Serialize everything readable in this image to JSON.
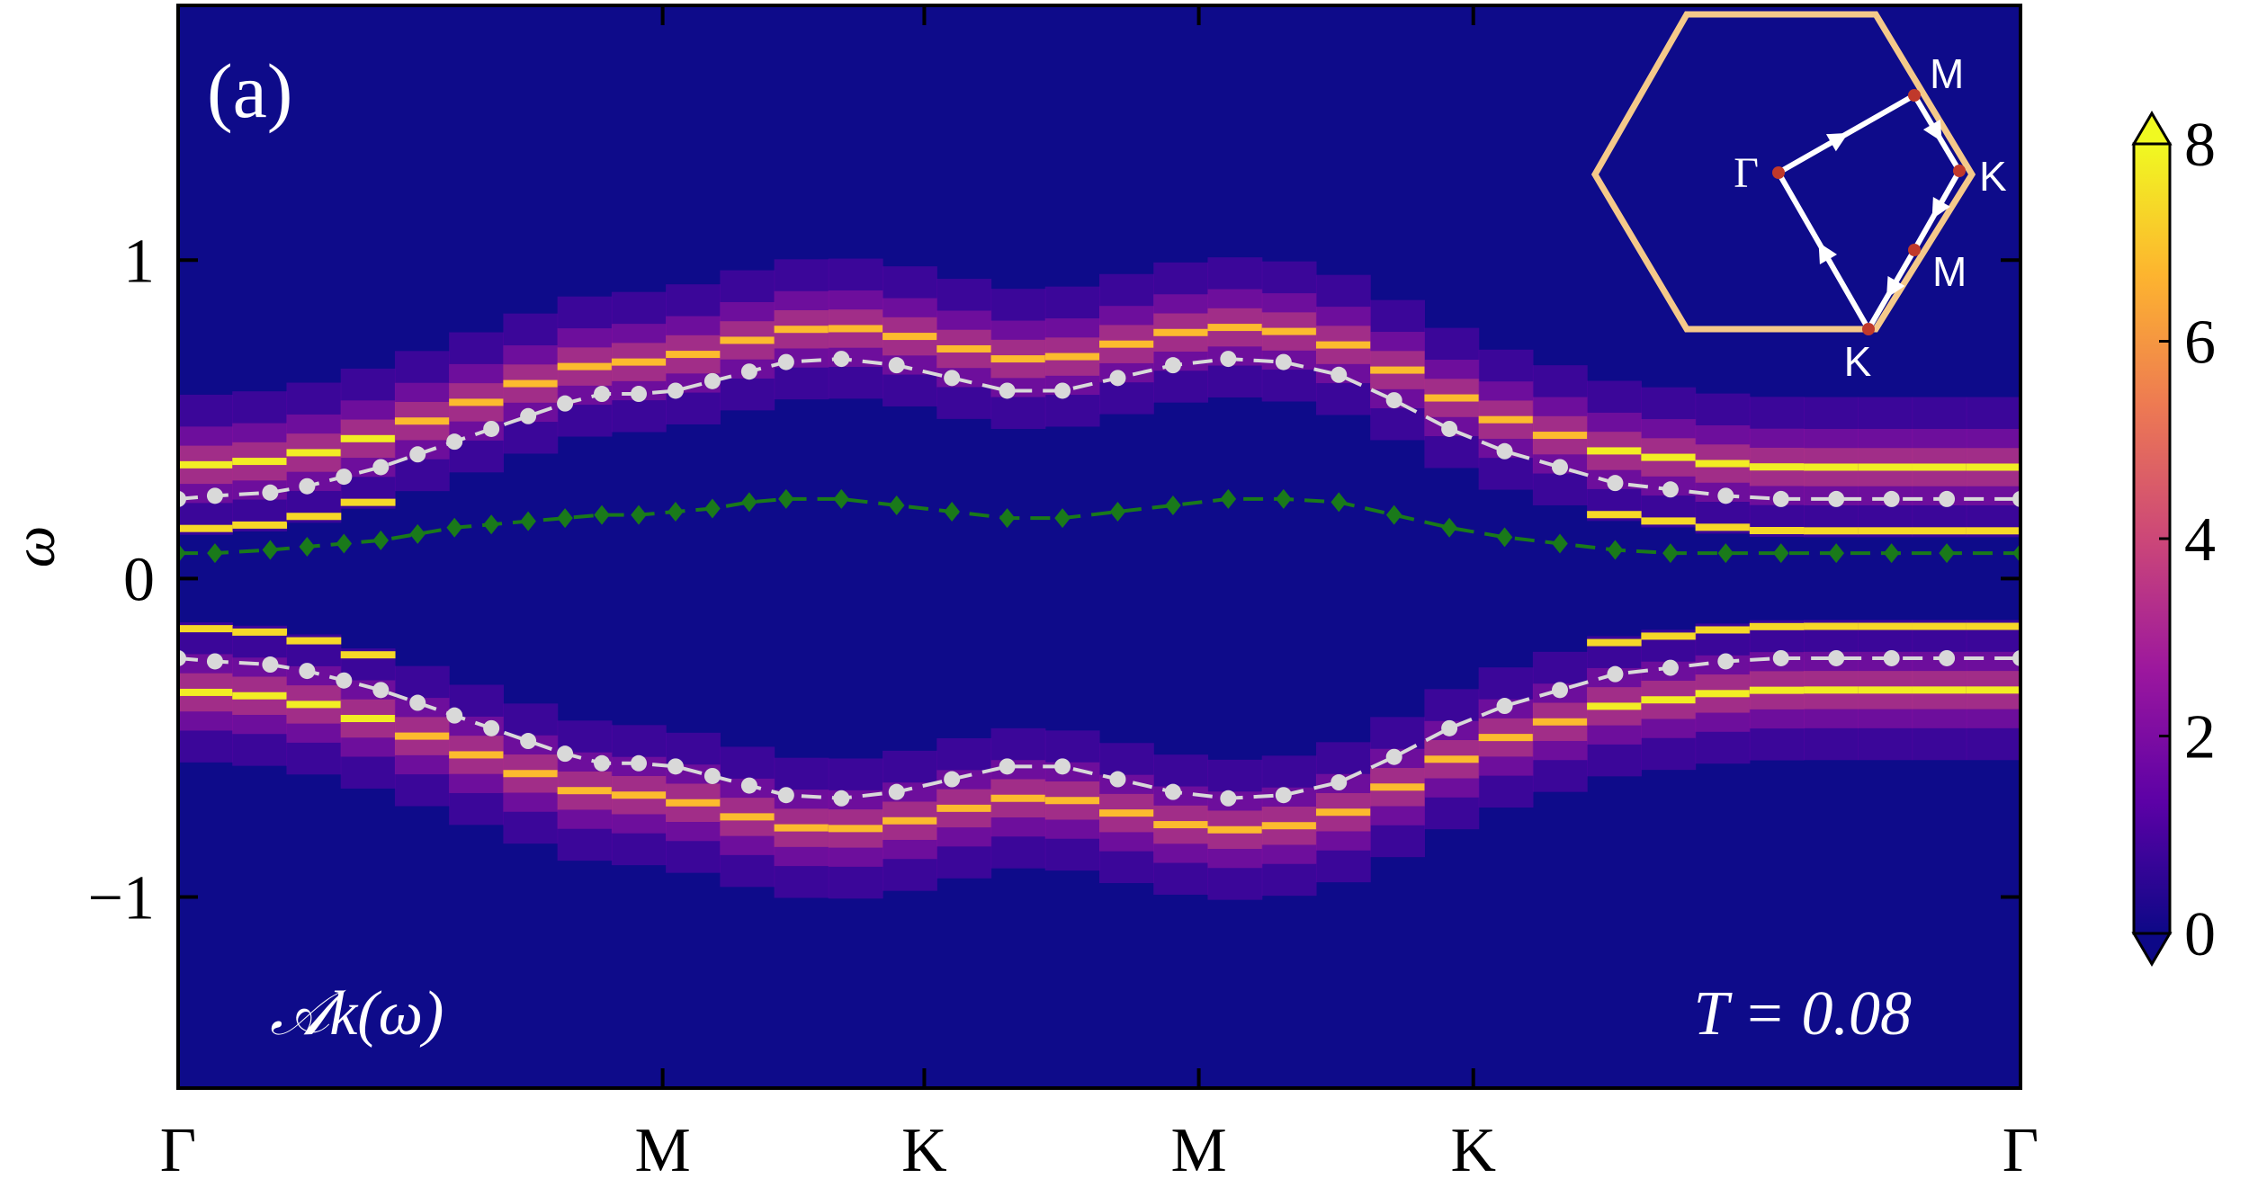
{
  "chart_data": {
    "type": "heatmap",
    "panel_label": "(a)",
    "ylabel": "ω",
    "spectral_label": "𝒜k(ω)",
    "annotation": "T = 0.08",
    "x_ticks": [
      "Γ",
      "M",
      "K",
      "M",
      "K",
      "Γ"
    ],
    "y_ticks": [
      {
        "value": 1,
        "label": "1"
      },
      {
        "value": 0,
        "label": "0"
      },
      {
        "value": -1,
        "label": "−1"
      }
    ],
    "ylim": [
      -1.6,
      1.8
    ],
    "colorbar": {
      "ticks": [
        "0",
        "2",
        "4",
        "6",
        "8"
      ],
      "range": [
        0,
        8
      ],
      "colormap": [
        "#0d0887",
        "#5c01a6",
        "#9c179e",
        "#cc4778",
        "#ed7953",
        "#fdb42f",
        "#f0f921"
      ]
    },
    "series": [
      {
        "marker": "circle",
        "color": "#d9d9d9",
        "x": [
          0.0,
          0.02,
          0.05,
          0.07,
          0.09,
          0.11,
          0.13,
          0.15,
          0.17,
          0.19,
          0.21,
          0.23,
          0.25,
          0.27,
          0.29,
          0.31,
          0.33,
          0.36,
          0.39,
          0.42,
          0.45,
          0.48,
          0.51,
          0.54,
          0.57,
          0.6,
          0.63,
          0.66,
          0.69,
          0.72,
          0.75,
          0.78,
          0.81,
          0.84,
          0.87,
          0.9,
          0.93,
          0.96,
          1.0
        ],
        "y": [
          0.25,
          0.26,
          0.27,
          0.29,
          0.32,
          0.35,
          0.39,
          0.43,
          0.47,
          0.51,
          0.55,
          0.58,
          0.58,
          0.59,
          0.62,
          0.65,
          0.68,
          0.69,
          0.67,
          0.63,
          0.59,
          0.59,
          0.63,
          0.67,
          0.69,
          0.68,
          0.64,
          0.56,
          0.47,
          0.4,
          0.35,
          0.3,
          0.28,
          0.26,
          0.25,
          0.25,
          0.25,
          0.25,
          0.25
        ]
      },
      {
        "marker": "circle",
        "color": "#d9d9d9",
        "x": [
          0.0,
          0.02,
          0.05,
          0.07,
          0.09,
          0.11,
          0.13,
          0.15,
          0.17,
          0.19,
          0.21,
          0.23,
          0.25,
          0.27,
          0.29,
          0.31,
          0.33,
          0.36,
          0.39,
          0.42,
          0.45,
          0.48,
          0.51,
          0.54,
          0.57,
          0.6,
          0.63,
          0.66,
          0.69,
          0.72,
          0.75,
          0.78,
          0.81,
          0.84,
          0.87,
          0.9,
          0.93,
          0.96,
          1.0
        ],
        "y": [
          -0.25,
          -0.26,
          -0.27,
          -0.29,
          -0.32,
          -0.35,
          -0.39,
          -0.43,
          -0.47,
          -0.51,
          -0.55,
          -0.58,
          -0.58,
          -0.59,
          -0.62,
          -0.65,
          -0.68,
          -0.69,
          -0.67,
          -0.63,
          -0.59,
          -0.59,
          -0.63,
          -0.67,
          -0.69,
          -0.68,
          -0.64,
          -0.56,
          -0.47,
          -0.4,
          -0.35,
          -0.3,
          -0.28,
          -0.26,
          -0.25,
          -0.25,
          -0.25,
          -0.25,
          -0.25
        ]
      },
      {
        "marker": "diamond",
        "color": "#1a7a1a",
        "x": [
          0.0,
          0.02,
          0.05,
          0.07,
          0.09,
          0.11,
          0.13,
          0.15,
          0.17,
          0.19,
          0.21,
          0.23,
          0.25,
          0.27,
          0.29,
          0.31,
          0.33,
          0.36,
          0.39,
          0.42,
          0.45,
          0.48,
          0.51,
          0.54,
          0.57,
          0.6,
          0.63,
          0.66,
          0.69,
          0.72,
          0.75,
          0.78,
          0.81,
          0.84,
          0.87,
          0.9,
          0.93,
          0.96,
          1.0
        ],
        "y": [
          0.08,
          0.08,
          0.09,
          0.1,
          0.11,
          0.12,
          0.14,
          0.16,
          0.17,
          0.18,
          0.19,
          0.2,
          0.2,
          0.21,
          0.22,
          0.24,
          0.25,
          0.25,
          0.23,
          0.21,
          0.19,
          0.19,
          0.21,
          0.23,
          0.25,
          0.25,
          0.24,
          0.2,
          0.16,
          0.13,
          0.11,
          0.09,
          0.08,
          0.08,
          0.08,
          0.08,
          0.08,
          0.08,
          0.08
        ]
      }
    ],
    "inset": {
      "hexagon_color": "#f5c98a",
      "path_color": "#ffffff",
      "point_color": "#c0392b",
      "labels": [
        "Γ",
        "M",
        "K",
        "M",
        "K"
      ]
    }
  }
}
